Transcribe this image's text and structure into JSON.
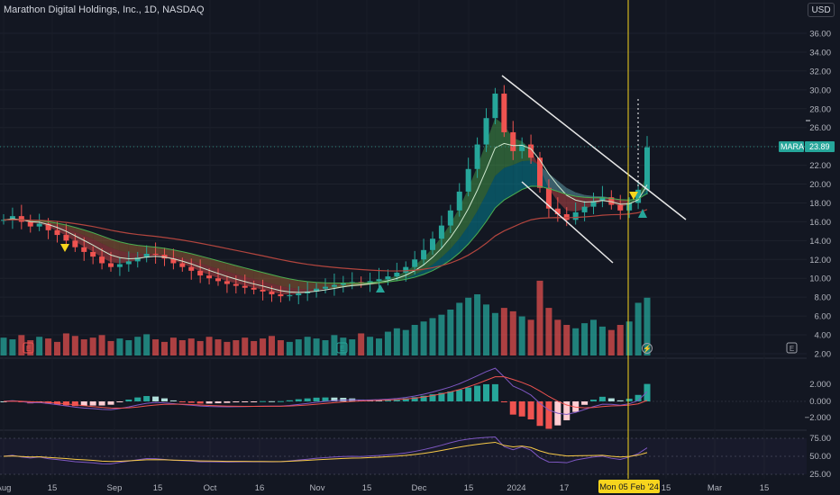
{
  "header": {
    "title": "Marathon Digital Holdings, Inc., 1D, NASDAQ",
    "currency": "USD"
  },
  "ticker": {
    "symbol": "MARA",
    "price": "23.89"
  },
  "crosshair": {
    "date_label": "Mon 05 Feb '24"
  },
  "colors": {
    "background": "#131722",
    "up": "#26a69a",
    "down": "#ef5350",
    "accent_yellow": "#f7d51d",
    "ticker_badge": "#2a8a80"
  },
  "chart_data": {
    "type": "candlestick",
    "price_axis": {
      "min": 2,
      "max": 36,
      "ticks": [
        "36.00",
        "34.00",
        "32.00",
        "30.00",
        "28.00",
        "26.00",
        "24.00",
        "22.00",
        "20.00",
        "18.00",
        "16.00",
        "14.00",
        "12.00",
        "10.00",
        "8.00",
        "6.00",
        "4.00",
        "2.00"
      ]
    },
    "indicator_axis": [
      "2.000",
      "0.000",
      "−2.000",
      "75.00",
      "50.00",
      "25.00"
    ],
    "time_axis": [
      "Aug",
      "15",
      "Sep",
      "15",
      "Oct",
      "16",
      "Nov",
      "15",
      "Dec",
      "15",
      "2024",
      "17",
      "Mon 05 Feb '24",
      "15",
      "Mar",
      "15"
    ],
    "close_series": [
      16.2,
      16.6,
      16.0,
      15.5,
      15.8,
      15.1,
      14.6,
      14.0,
      13.3,
      12.8,
      12.3,
      11.6,
      11.2,
      11.5,
      11.8,
      12.2,
      12.6,
      12.5,
      12.1,
      11.6,
      11.2,
      10.8,
      10.3,
      10.0,
      9.7,
      9.4,
      9.2,
      9.0,
      8.8,
      8.6,
      8.3,
      8.1,
      8.2,
      8.4,
      8.6,
      8.9,
      9.1,
      9.3,
      9.5,
      9.6,
      9.5,
      9.7,
      9.9,
      10.2,
      10.6,
      11.2,
      12.0,
      13.0,
      14.2,
      15.6,
      17.2,
      19.2,
      21.6,
      24.2,
      27.0,
      29.6,
      25.5,
      23.5,
      24.2,
      22.8,
      19.6,
      17.4,
      16.8,
      16.2,
      17.0,
      17.6,
      18.2,
      18.6,
      17.8,
      17.2,
      18.0,
      19.4,
      23.9
    ],
    "volume_series": [
      2.1,
      1.9,
      2.4,
      1.8,
      2.2,
      2.0,
      1.6,
      2.6,
      2.3,
      1.9,
      2.1,
      2.4,
      1.7,
      2.0,
      1.8,
      2.2,
      2.5,
      1.9,
      1.6,
      2.1,
      1.8,
      2.0,
      1.7,
      2.2,
      1.9,
      1.6,
      1.8,
      2.1,
      1.7,
      2.0,
      2.3,
      1.8,
      1.6,
      1.9,
      2.2,
      2.0,
      1.8,
      2.4,
      2.1,
      1.9,
      2.6,
      2.2,
      2.0,
      2.8,
      3.2,
      3.0,
      3.6,
      4.0,
      4.4,
      4.8,
      5.4,
      6.2,
      6.8,
      7.2,
      6.0,
      5.0,
      5.6,
      5.2,
      4.6,
      4.2,
      8.8,
      5.6,
      4.2,
      3.6,
      3.2,
      3.8,
      4.2,
      3.4,
      3.0,
      3.6,
      4.0,
      6.2,
      6.8
    ],
    "annotations": [
      "descending channel trendlines",
      "buy/sell triangle markers"
    ],
    "legend_badge": "E"
  }
}
